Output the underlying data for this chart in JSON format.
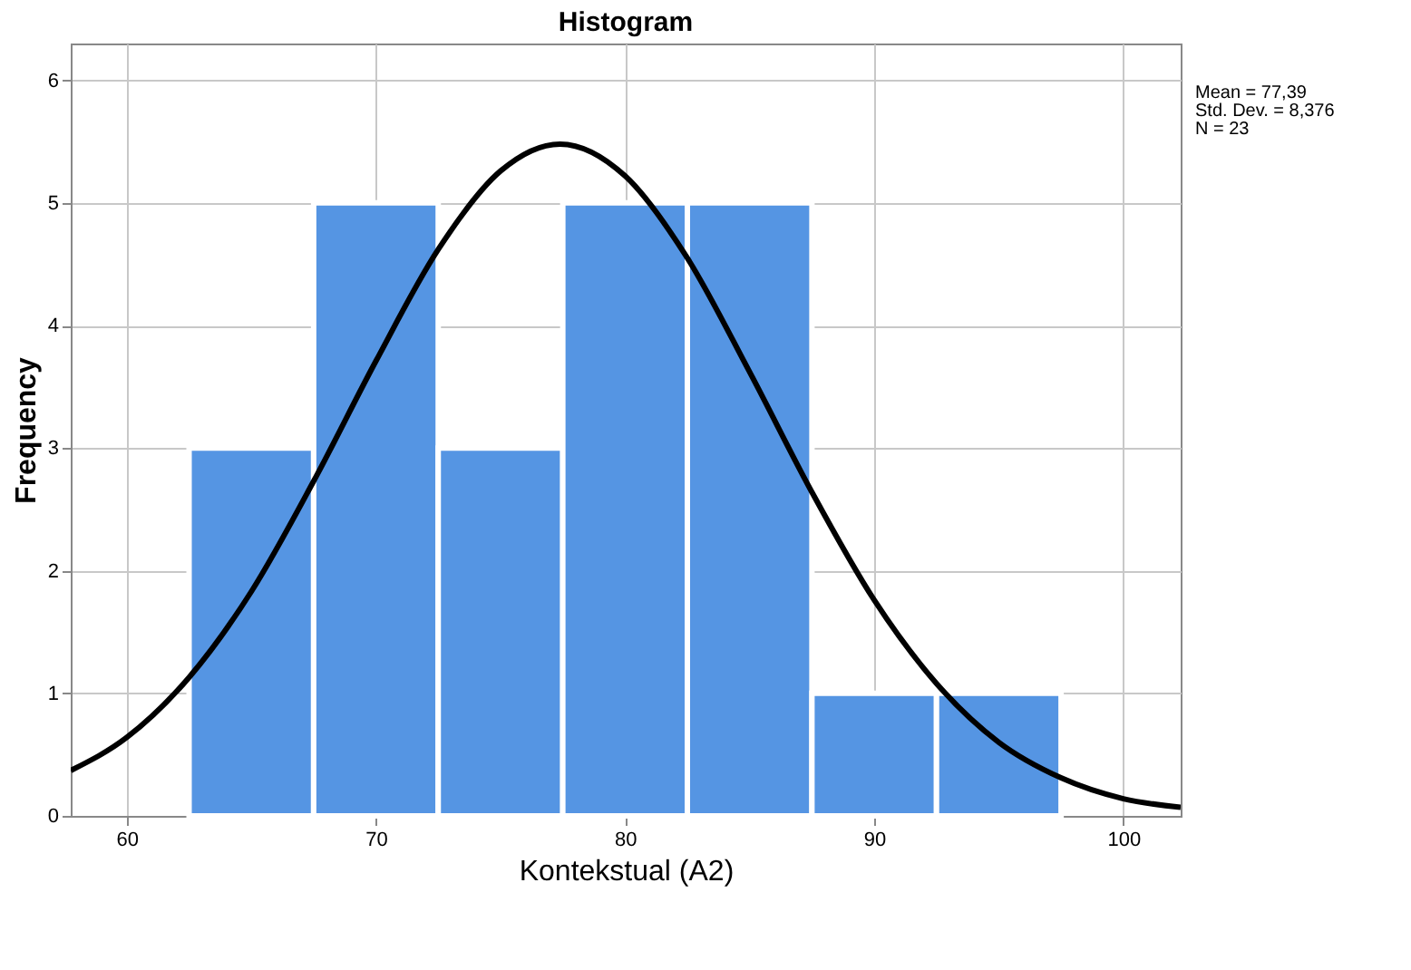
{
  "chart_data": {
    "type": "histogram",
    "title": "Histogram",
    "xlabel": "Kontekstual (A2)",
    "ylabel": "Frequency",
    "bins": [
      62.5,
      67.5,
      72.5,
      77.5,
      82.5,
      87.5,
      92.5,
      97.5
    ],
    "values": [
      3,
      5,
      3,
      5,
      5,
      1,
      1
    ],
    "color": "#5595e3",
    "series": [
      {
        "type": "line",
        "color": "#000000",
        "x": [
          57.75,
          60,
          62.5,
          65,
          67.5,
          70,
          72.5,
          75,
          77.39,
          80,
          82.5,
          85,
          87.5,
          90,
          92.5,
          95,
          97.5,
          100,
          102.3
        ],
        "values": [
          0.37,
          0.64,
          1.13,
          1.83,
          2.73,
          3.71,
          4.62,
          5.26,
          5.48,
          5.22,
          4.55,
          3.62,
          2.64,
          1.76,
          1.08,
          0.6,
          0.31,
          0.14,
          0.07
        ]
      }
    ],
    "xlim": [
      57.75,
      102.3
    ],
    "xticks": [
      60,
      70,
      80,
      90,
      100
    ],
    "ylim": [
      0,
      6.3
    ],
    "yticks": [
      0,
      1,
      2,
      3,
      4,
      5,
      6
    ],
    "grid": true,
    "annotations": [
      "Mean = 77,39",
      "Std. Dev. = 8,376",
      "N = 23"
    ]
  }
}
